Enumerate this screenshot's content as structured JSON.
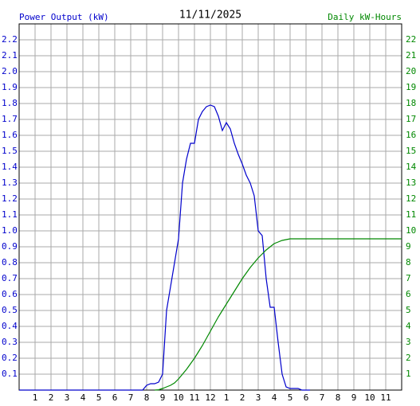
{
  "chart_data": {
    "type": "line",
    "title": "11/11/2025",
    "y_label": "Power Output (kW)",
    "y2_label": "Daily kW-Hours",
    "x": [
      0,
      7.75,
      8,
      8.25,
      8.5,
      8.75,
      9,
      9.25,
      9.5,
      9.75,
      10,
      10.25,
      10.5,
      10.75,
      11,
      11.25,
      11.5,
      11.75,
      12,
      12.25,
      12.5,
      12.75,
      13,
      13.25,
      13.5,
      13.75,
      14,
      14.25,
      14.5,
      14.75,
      15,
      15.25,
      15.5,
      15.75,
      16,
      16.25,
      16.5,
      16.75,
      17,
      17.25,
      17.5,
      17.75,
      18,
      18.25,
      24
    ],
    "series": [
      {
        "color": "#0000cc",
        "axis": "y",
        "values": [
          0,
          0,
          0.03,
          0.04,
          0.04,
          0.05,
          0.1,
          0.5,
          0.65,
          0.8,
          0.95,
          1.3,
          1.45,
          1.55,
          1.55,
          1.7,
          1.75,
          1.78,
          1.79,
          1.78,
          1.72,
          1.63,
          1.68,
          1.64,
          1.55,
          1.48,
          1.42,
          1.35,
          1.3,
          1.22,
          1.0,
          0.97,
          0.7,
          0.52,
          0.52,
          0.3,
          0.1,
          0.02,
          0.01,
          0.01,
          0.01,
          0,
          0,
          0,
          null
        ]
      },
      {
        "color": "#008800",
        "axis": "y2",
        "values": [
          null,
          null,
          null,
          null,
          0,
          0.02,
          0.1,
          0.2,
          0.3,
          0.45,
          0.7,
          1.0,
          1.3,
          1.65,
          2.0,
          2.4,
          2.8,
          3.25,
          3.7,
          4.15,
          4.6,
          5.0,
          5.4,
          5.8,
          6.2,
          6.6,
          7.0,
          7.35,
          7.7,
          8.0,
          8.3,
          8.55,
          8.8,
          9.0,
          9.2,
          9.3,
          9.4,
          9.45,
          9.5,
          9.5,
          9.5,
          9.5,
          9.5,
          9.5,
          9.5
        ]
      }
    ],
    "xlim": [
      0,
      24
    ],
    "xticks": [
      1,
      2,
      3,
      4,
      5,
      6,
      7,
      8,
      9,
      10,
      11,
      12,
      {
        "value": 13,
        "label": "1"
      },
      {
        "value": 14,
        "label": "2"
      },
      {
        "value": 15,
        "label": "3"
      },
      {
        "value": 16,
        "label": "4"
      },
      {
        "value": 17,
        "label": "5"
      },
      {
        "value": 18,
        "label": "6"
      },
      {
        "value": 19,
        "label": "7"
      },
      {
        "value": 20,
        "label": "8"
      },
      {
        "value": 21,
        "label": "9"
      },
      {
        "value": 22,
        "label": "10"
      },
      {
        "value": 23,
        "label": "11"
      }
    ],
    "ylim": [
      0,
      2.3
    ],
    "yticks": [
      0.1,
      0.2,
      0.3,
      0.4,
      0.5,
      0.6,
      0.7,
      0.8,
      0.9,
      {
        "value": 1,
        "label": "1.0"
      },
      1.1,
      1.2,
      1.3,
      1.4,
      1.5,
      1.6,
      1.7,
      1.8,
      1.9,
      {
        "value": 2,
        "label": "2.0"
      },
      2.1,
      2.2
    ],
    "y2lim": [
      0,
      23
    ],
    "y2ticks": [
      1,
      2,
      3,
      4,
      5,
      6,
      7,
      8,
      9,
      10,
      11,
      12,
      13,
      14,
      15,
      16,
      17,
      18,
      19,
      20,
      21,
      22
    ],
    "grid": true
  }
}
